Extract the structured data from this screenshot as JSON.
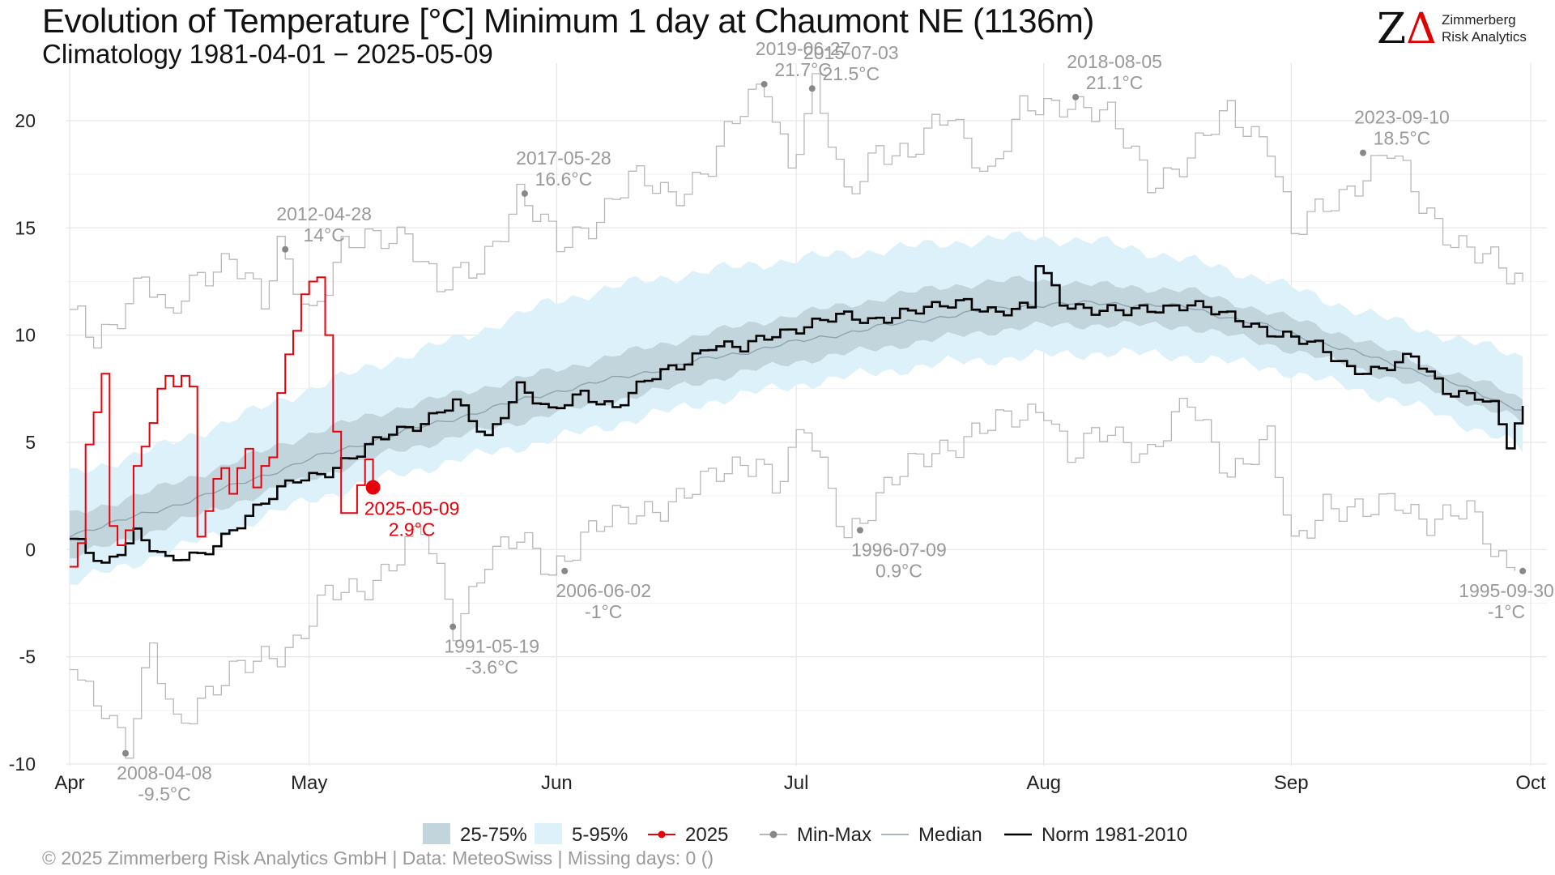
{
  "title": "Evolution of Temperature [°C] Minimum 1 day at Chaumont  NE (1136m)",
  "subtitle": "Climatology 1981-04-01 − 2025-05-09",
  "logo": {
    "mark": "ZΔ",
    "line1": "Zimmerberg",
    "line2": "Risk Analytics"
  },
  "caption": "©  2025 Zimmerberg Risk Analytics GmbH | Data: MeteoSwiss | Missing days: 0 ()",
  "colors": {
    "band_25_75": "#c3d5dc",
    "band_5_95": "#ddf1fa",
    "current_year": "#e8000b",
    "minmax": "#b8b8b8",
    "median": "#8aa0ac",
    "norm": "#000000",
    "annotation": "#999999"
  },
  "chart_data": {
    "type": "line",
    "x_domain": [
      "2025-04-01",
      "2025-10-01"
    ],
    "ylim": [
      -10,
      22
    ],
    "yticks": [
      -10,
      -5,
      0,
      5,
      10,
      15,
      20
    ],
    "xticks": [
      {
        "day": 0,
        "label": "Apr"
      },
      {
        "day": 30,
        "label": "May"
      },
      {
        "day": 61,
        "label": "Jun"
      },
      {
        "day": 91,
        "label": "Jul"
      },
      {
        "day": 122,
        "label": "Aug"
      },
      {
        "day": 153,
        "label": "Sep"
      },
      {
        "day": 183,
        "label": "Oct"
      }
    ],
    "grid": true,
    "legend_position": "bottom",
    "legend": [
      {
        "key": "band_25_75",
        "label": "25-75%"
      },
      {
        "key": "band_5_95",
        "label": "5-95%"
      },
      {
        "key": "current_year",
        "label": "2025"
      },
      {
        "key": "minmax",
        "label": "Min-Max"
      },
      {
        "key": "median",
        "label": "Median"
      },
      {
        "key": "norm",
        "label": "Norm 1981-2010"
      }
    ],
    "band_days": [
      0,
      10,
      20,
      30,
      40,
      50,
      60,
      70,
      80,
      90,
      100,
      110,
      120,
      130,
      140,
      150,
      160,
      170,
      180,
      182
    ],
    "p5": [
      -1.6,
      -0.4,
      0.9,
      2.3,
      3.4,
      4.3,
      5.1,
      6.0,
      6.9,
      7.6,
      8.2,
      8.7,
      9.0,
      9.2,
      9.0,
      8.5,
      7.6,
      6.5,
      5.1,
      4.6
    ],
    "p25": [
      -0.4,
      0.8,
      2.1,
      3.3,
      4.5,
      5.4,
      6.3,
      7.1,
      7.9,
      8.7,
      9.3,
      9.9,
      10.4,
      10.5,
      10.4,
      9.6,
      8.6,
      7.5,
      6.3,
      5.9
    ],
    "p75": [
      1.6,
      2.7,
      4.0,
      5.4,
      6.5,
      7.4,
      8.3,
      9.2,
      10.1,
      10.9,
      11.6,
      12.3,
      12.6,
      12.3,
      12.1,
      11.1,
      10.0,
      8.6,
      7.4,
      7.0
    ],
    "p95": [
      3.5,
      4.6,
      6.0,
      7.5,
      8.8,
      10.0,
      11.5,
      12.4,
      13.0,
      13.5,
      13.9,
      14.3,
      14.6,
      14.3,
      13.5,
      12.6,
      11.3,
      10.2,
      9.2,
      9.0
    ],
    "median": [
      0.7,
      1.7,
      2.9,
      4.2,
      5.3,
      6.3,
      7.3,
      8.1,
      8.9,
      9.6,
      10.3,
      10.9,
      11.4,
      11.5,
      11.3,
      10.4,
      9.3,
      8.2,
      6.8,
      6.5
    ],
    "max_days": [
      0,
      3,
      6,
      9,
      12,
      16,
      20,
      24,
      26,
      30,
      34,
      38,
      42,
      46,
      51,
      56,
      61,
      66,
      70,
      75,
      80,
      85,
      87,
      90,
      93,
      97,
      101,
      105,
      110,
      115,
      119,
      125,
      130,
      135,
      140,
      145,
      150,
      153,
      157,
      160,
      165,
      169,
      172,
      175,
      180,
      182
    ],
    "max_values": [
      11.2,
      9.6,
      11.2,
      12.9,
      10.5,
      12.9,
      13.8,
      11.2,
      14.0,
      11.2,
      13.9,
      14.4,
      15.0,
      12.0,
      13.2,
      16.6,
      14.0,
      15.7,
      17.2,
      16.5,
      18.0,
      20.9,
      21.7,
      18.0,
      21.5,
      16.3,
      19.0,
      18.2,
      20.4,
      17.5,
      20.3,
      21.1,
      20.0,
      17.3,
      18.2,
      20.4,
      19.1,
      14.5,
      16.0,
      17.0,
      18.5,
      16.1,
      15.0,
      14.0,
      12.7,
      12.5
    ],
    "min_days": [
      0,
      4,
      7,
      10,
      13,
      16,
      20,
      24,
      28,
      32,
      36,
      40,
      44,
      48,
      52,
      56,
      60,
      64,
      70,
      75,
      80,
      86,
      88,
      92,
      97,
      100,
      104,
      108,
      112,
      117,
      122,
      125,
      130,
      135,
      140,
      145,
      150,
      153,
      157,
      162,
      166,
      170,
      175,
      178,
      181
    ],
    "min_values": [
      -5.6,
      -7.1,
      -9.5,
      -4.8,
      -8.0,
      -6.9,
      -6.0,
      -5.0,
      -4.2,
      -2.3,
      -1.9,
      -0.5,
      0.8,
      -3.6,
      -0.2,
      0.3,
      -1.0,
      0.8,
      1.5,
      2.4,
      3.1,
      4.5,
      3.0,
      5.5,
      0.9,
      2.0,
      3.4,
      4.8,
      5.2,
      5.9,
      6.9,
      4.2,
      5.5,
      4.6,
      6.7,
      3.8,
      5.0,
      0.0,
      2.4,
      1.5,
      2.3,
      1.5,
      1.6,
      0.0,
      -1.0
    ],
    "norm_days": [
      0,
      4,
      8,
      12,
      16,
      20,
      24,
      28,
      32,
      36,
      40,
      44,
      48,
      52,
      56,
      60,
      64,
      68,
      72,
      76,
      80,
      84,
      88,
      92,
      96,
      100,
      104,
      108,
      112,
      116,
      120,
      121,
      124,
      128,
      132,
      136,
      140,
      144,
      148,
      152,
      156,
      160,
      164,
      168,
      172,
      176,
      178,
      180,
      182
    ],
    "norm_values": [
      0.5,
      -0.8,
      0.9,
      -0.6,
      -0.3,
      1.0,
      2.1,
      3.3,
      3.7,
      4.4,
      5.5,
      6.0,
      6.8,
      5.2,
      7.7,
      6.3,
      7.3,
      6.7,
      7.8,
      8.6,
      9.6,
      9.3,
      10.1,
      10.5,
      10.8,
      10.7,
      11.1,
      11.2,
      11.6,
      11.1,
      11.2,
      13.3,
      11.6,
      11.2,
      11.0,
      11.3,
      11.5,
      10.9,
      10.5,
      10.0,
      9.4,
      8.5,
      8.4,
      8.9,
      7.5,
      7.2,
      6.6,
      4.8,
      6.7
    ],
    "current_days": [
      0,
      1,
      2,
      3,
      4,
      5,
      6,
      7,
      8,
      9,
      10,
      11,
      12,
      13,
      14,
      15,
      16,
      17,
      18,
      19,
      20,
      21,
      22,
      23,
      24,
      25,
      26,
      27,
      28,
      29,
      30,
      31,
      32,
      33,
      34,
      35,
      36,
      37,
      38
    ],
    "current_values": [
      -0.8,
      0.3,
      4.9,
      6.4,
      8.2,
      1.1,
      0.2,
      0.9,
      3.9,
      4.8,
      5.9,
      7.5,
      8.1,
      7.6,
      8.1,
      7.6,
      0.6,
      1.8,
      3.3,
      3.8,
      2.6,
      3.8,
      4.7,
      2.9,
      3.9,
      4.3,
      7.3,
      9.1,
      10.2,
      11.9,
      12.5,
      12.7,
      10.0,
      5.5,
      1.7,
      1.7,
      3.0,
      4.2,
      2.9
    ],
    "current_marker": {
      "day": 38,
      "value": 2.9,
      "label_date": "2025-05-09",
      "label_value": "2.9°C"
    },
    "annotations": [
      {
        "date": "2012-04-28",
        "value": "14°C",
        "day": 27,
        "temp": 14.0,
        "side": "above"
      },
      {
        "date": "2017-05-28",
        "value": "16.6°C",
        "day": 57,
        "temp": 16.6,
        "side": "above"
      },
      {
        "date": "2019-06-27",
        "value": "21.7°C",
        "day": 87,
        "temp": 21.7,
        "side": "above"
      },
      {
        "date": "2015-07-03",
        "value": "21.5°C",
        "day": 93,
        "temp": 21.5,
        "side": "above"
      },
      {
        "date": "2018-08-05",
        "value": "21.1°C",
        "day": 126,
        "temp": 21.1,
        "side": "above"
      },
      {
        "date": "2023-09-10",
        "value": "18.5°C",
        "day": 162,
        "temp": 18.5,
        "side": "above"
      },
      {
        "date": "2008-04-08",
        "value": "-9.5°C",
        "day": 7,
        "temp": -9.5,
        "side": "below"
      },
      {
        "date": "1991-05-19",
        "value": "-3.6°C",
        "day": 48,
        "temp": -3.6,
        "side": "below"
      },
      {
        "date": "2006-06-02",
        "value": "-1°C",
        "day": 62,
        "temp": -1.0,
        "side": "below"
      },
      {
        "date": "1996-07-09",
        "value": "0.9°C",
        "day": 99,
        "temp": 0.9,
        "side": "below"
      },
      {
        "date": "1995-09-30",
        "value": "-1°C",
        "day": 182,
        "temp": -1.0,
        "side": "below"
      }
    ]
  }
}
